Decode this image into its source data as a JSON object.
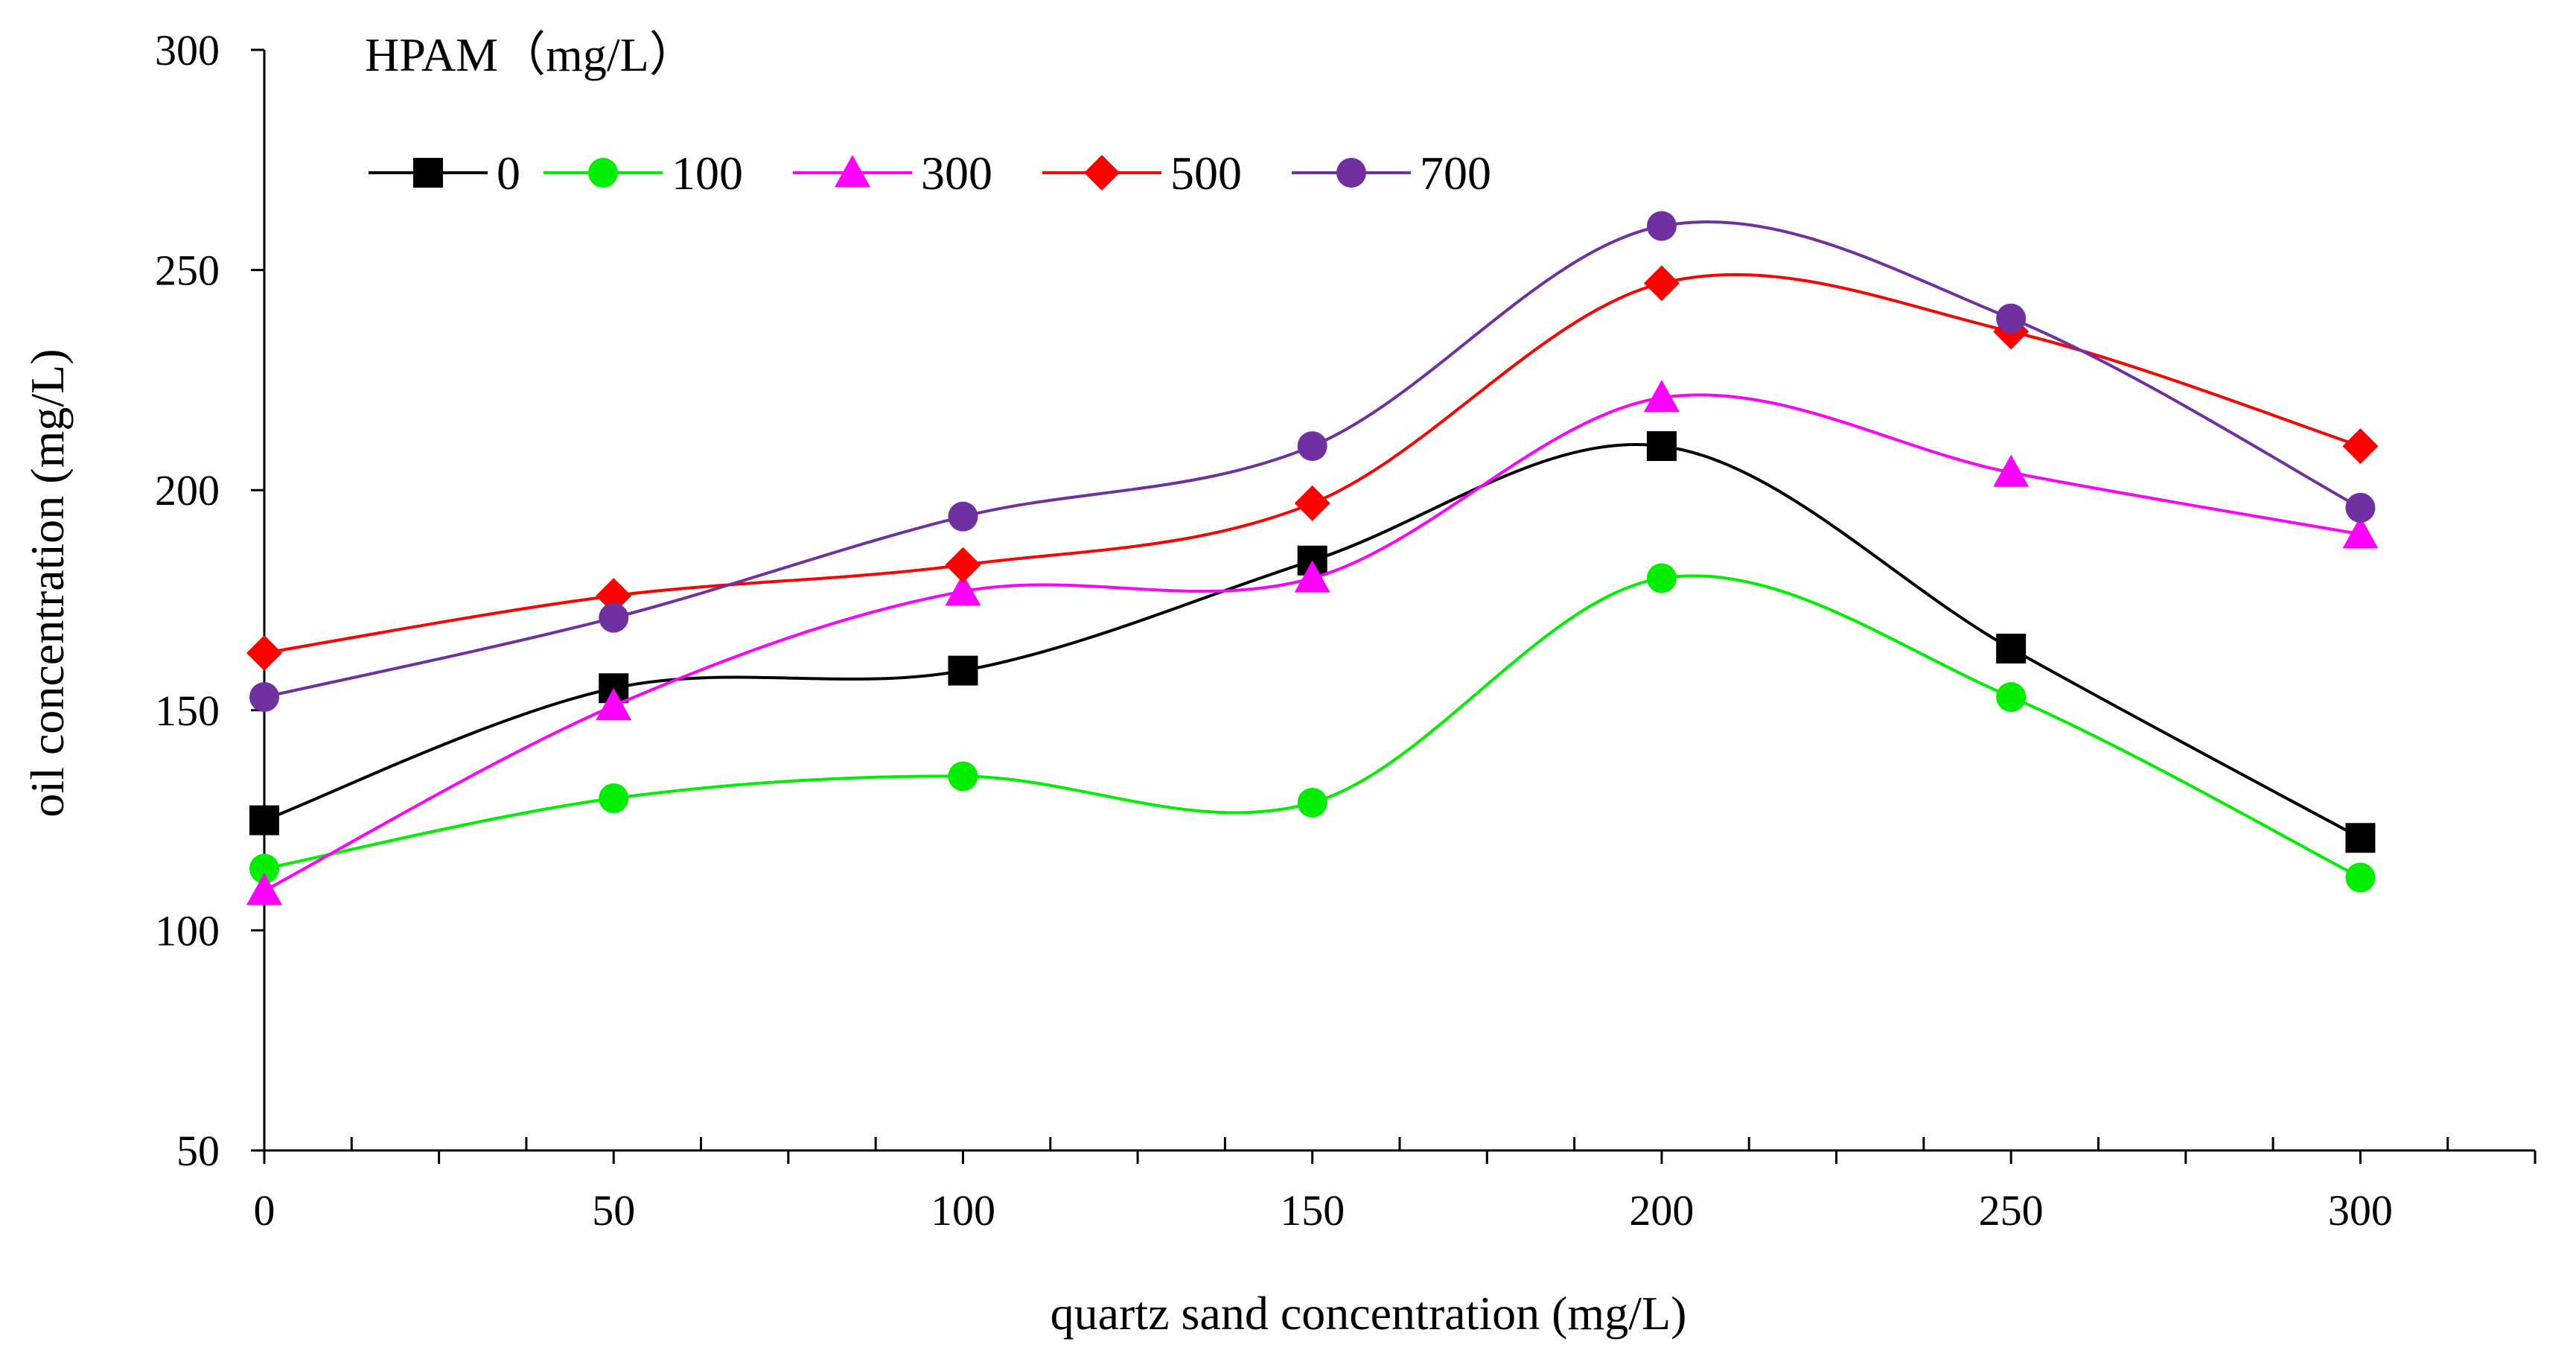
{
  "chart_data": {
    "type": "line",
    "legend_title": "HPAM（mg/L）",
    "xlabel": "quartz sand concentration (mg/L)",
    "ylabel": "oil concentration (mg/L)",
    "x": [
      0,
      50,
      100,
      150,
      200,
      250,
      300
    ],
    "xlim": [
      0,
      325
    ],
    "ylim": [
      50,
      300
    ],
    "xticks": [
      0,
      50,
      100,
      150,
      200,
      250,
      300
    ],
    "yticks": [
      50,
      100,
      150,
      200,
      250,
      300
    ],
    "xtick_labels": [
      "0",
      "50",
      "100",
      "150",
      "200",
      "250",
      "300"
    ],
    "ytick_labels": [
      "50",
      "100",
      "150",
      "200",
      "250",
      "300"
    ],
    "grid": false,
    "legend_position": "top-left",
    "series": [
      {
        "name": "0",
        "color": "#000000",
        "marker": "square",
        "values": [
          125,
          155,
          159,
          184,
          210,
          164,
          121
        ]
      },
      {
        "name": "100",
        "color": "#00ee00",
        "marker": "circle",
        "values": [
          114,
          130,
          135,
          129,
          180,
          153,
          112
        ]
      },
      {
        "name": "300",
        "color": "#ff00ff",
        "marker": "triangle",
        "values": [
          109,
          151,
          177,
          180,
          221,
          204,
          190
        ]
      },
      {
        "name": "500",
        "color": "#ff0000",
        "marker": "diamond",
        "values": [
          163,
          176,
          183,
          197,
          247,
          236,
          210
        ]
      },
      {
        "name": "700",
        "color": "#7030a0",
        "marker": "circle",
        "values": [
          153,
          171,
          194,
          210,
          260,
          239,
          196
        ]
      }
    ]
  }
}
